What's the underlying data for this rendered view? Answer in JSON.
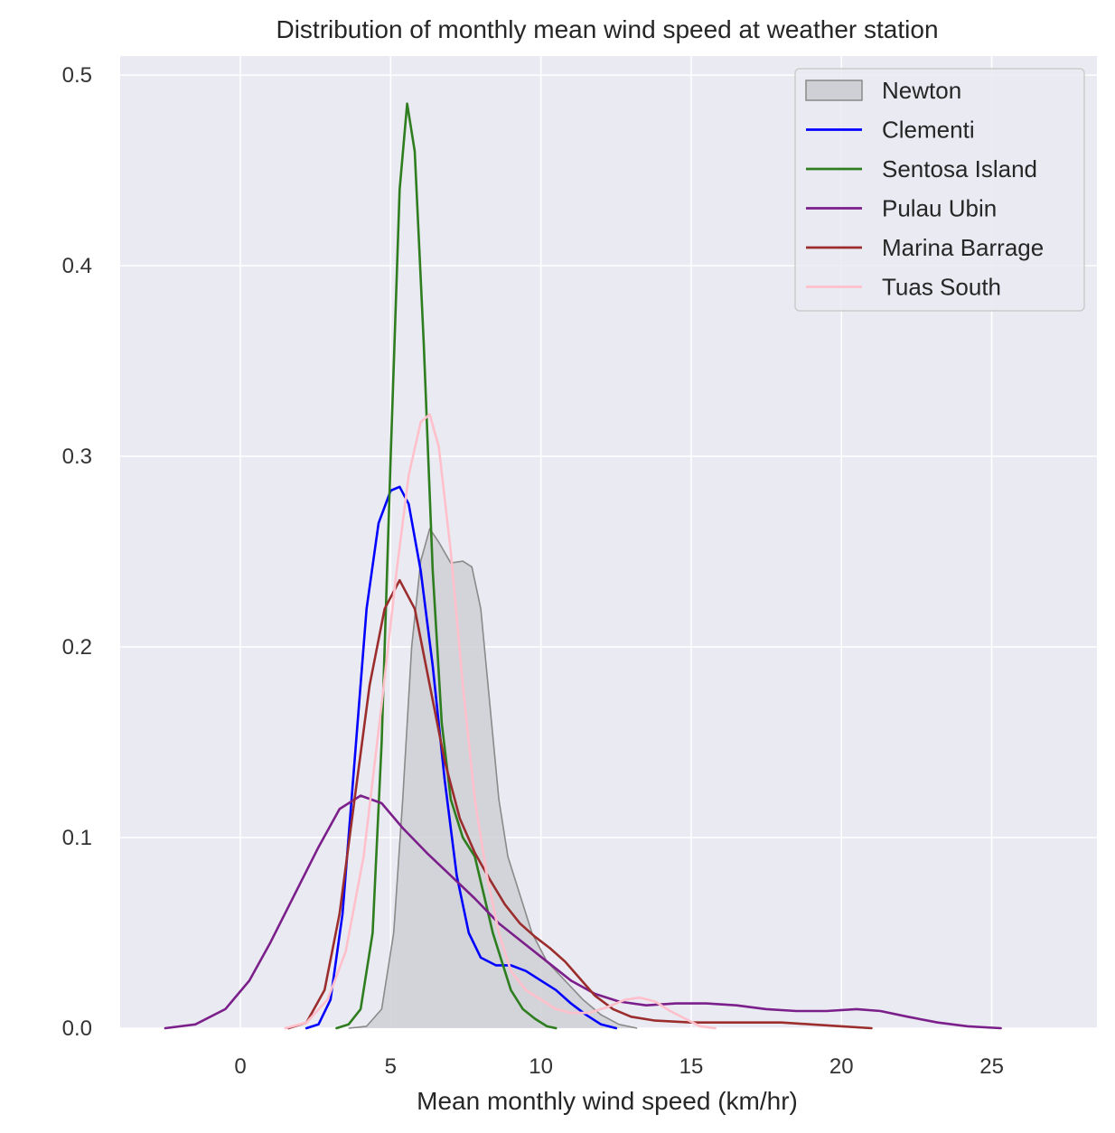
{
  "chart_data": {
    "type": "line",
    "title": "Distribution of monthly mean wind speed at weather station",
    "xlabel": "Mean monthly wind speed (km/hr)",
    "ylabel": "",
    "xlim": [
      -4,
      28.5
    ],
    "ylim": [
      0,
      0.51
    ],
    "xticks": [
      0,
      5,
      10,
      15,
      20,
      25
    ],
    "yticks": [
      0.0,
      0.1,
      0.2,
      0.3,
      0.4,
      0.5
    ],
    "xtick_labels": [
      "0",
      "5",
      "10",
      "15",
      "20",
      "25"
    ],
    "ytick_labels": [
      "0.0",
      "0.1",
      "0.2",
      "0.3",
      "0.4",
      "0.5"
    ],
    "grid": true,
    "legend_position": "top-right",
    "colors": {
      "background": "#eaeaf2",
      "grid": "#ffffff",
      "newton_fill": "#cfcfd6",
      "newton_line": "#8a8a8a"
    },
    "series": [
      {
        "name": "Newton",
        "style": "filled",
        "color": "#8a8a8a",
        "points": [
          [
            3.6,
            0
          ],
          [
            4.2,
            0.001
          ],
          [
            4.7,
            0.01
          ],
          [
            5.1,
            0.05
          ],
          [
            5.4,
            0.12
          ],
          [
            5.7,
            0.2
          ],
          [
            6.0,
            0.245
          ],
          [
            6.3,
            0.262
          ],
          [
            6.6,
            0.255
          ],
          [
            7.0,
            0.244
          ],
          [
            7.4,
            0.245
          ],
          [
            7.7,
            0.242
          ],
          [
            8.0,
            0.22
          ],
          [
            8.3,
            0.17
          ],
          [
            8.6,
            0.12
          ],
          [
            8.9,
            0.09
          ],
          [
            9.3,
            0.07
          ],
          [
            9.7,
            0.05
          ],
          [
            10.2,
            0.035
          ],
          [
            10.8,
            0.025
          ],
          [
            11.4,
            0.015
          ],
          [
            12.0,
            0.007
          ],
          [
            12.6,
            0.002
          ],
          [
            13.2,
            0
          ]
        ]
      },
      {
        "name": "Clementi",
        "style": "line",
        "color": "#0000ff",
        "points": [
          [
            2.2,
            0
          ],
          [
            2.6,
            0.002
          ],
          [
            3.0,
            0.015
          ],
          [
            3.4,
            0.06
          ],
          [
            3.8,
            0.14
          ],
          [
            4.2,
            0.22
          ],
          [
            4.6,
            0.265
          ],
          [
            5.0,
            0.282
          ],
          [
            5.3,
            0.284
          ],
          [
            5.6,
            0.275
          ],
          [
            6.0,
            0.24
          ],
          [
            6.4,
            0.19
          ],
          [
            6.8,
            0.13
          ],
          [
            7.2,
            0.08
          ],
          [
            7.6,
            0.05
          ],
          [
            8.0,
            0.037
          ],
          [
            8.5,
            0.033
          ],
          [
            9.0,
            0.033
          ],
          [
            9.5,
            0.03
          ],
          [
            10.0,
            0.025
          ],
          [
            10.5,
            0.02
          ],
          [
            11.0,
            0.013
          ],
          [
            11.5,
            0.007
          ],
          [
            12.0,
            0.002
          ],
          [
            12.5,
            0
          ]
        ]
      },
      {
        "name": "Sentosa Island",
        "style": "line",
        "color": "#2e7d1f",
        "points": [
          [
            3.2,
            0
          ],
          [
            3.6,
            0.002
          ],
          [
            4.0,
            0.01
          ],
          [
            4.4,
            0.05
          ],
          [
            4.7,
            0.15
          ],
          [
            5.0,
            0.3
          ],
          [
            5.3,
            0.44
          ],
          [
            5.55,
            0.485
          ],
          [
            5.8,
            0.46
          ],
          [
            6.1,
            0.36
          ],
          [
            6.4,
            0.24
          ],
          [
            6.7,
            0.16
          ],
          [
            7.0,
            0.12
          ],
          [
            7.4,
            0.1
          ],
          [
            7.8,
            0.09
          ],
          [
            8.1,
            0.07
          ],
          [
            8.4,
            0.05
          ],
          [
            8.7,
            0.035
          ],
          [
            9.0,
            0.02
          ],
          [
            9.4,
            0.01
          ],
          [
            9.8,
            0.005
          ],
          [
            10.2,
            0.001
          ],
          [
            10.5,
            0
          ]
        ]
      },
      {
        "name": "Pulau Ubin",
        "style": "line",
        "color": "#7b1f8a",
        "points": [
          [
            -2.5,
            0
          ],
          [
            -1.5,
            0.002
          ],
          [
            -0.5,
            0.01
          ],
          [
            0.3,
            0.025
          ],
          [
            1.0,
            0.045
          ],
          [
            1.8,
            0.07
          ],
          [
            2.6,
            0.095
          ],
          [
            3.3,
            0.115
          ],
          [
            4.0,
            0.122
          ],
          [
            4.7,
            0.118
          ],
          [
            5.4,
            0.105
          ],
          [
            6.2,
            0.092
          ],
          [
            7.0,
            0.08
          ],
          [
            7.8,
            0.068
          ],
          [
            8.6,
            0.055
          ],
          [
            9.4,
            0.045
          ],
          [
            10.2,
            0.035
          ],
          [
            11.0,
            0.025
          ],
          [
            11.8,
            0.018
          ],
          [
            12.6,
            0.014
          ],
          [
            13.5,
            0.012
          ],
          [
            14.5,
            0.013
          ],
          [
            15.5,
            0.013
          ],
          [
            16.5,
            0.012
          ],
          [
            17.5,
            0.01
          ],
          [
            18.5,
            0.009
          ],
          [
            19.5,
            0.009
          ],
          [
            20.5,
            0.01
          ],
          [
            21.3,
            0.009
          ],
          [
            22.2,
            0.006
          ],
          [
            23.2,
            0.003
          ],
          [
            24.2,
            0.001
          ],
          [
            25.3,
            0
          ]
        ]
      },
      {
        "name": "Marina Barrage",
        "style": "line",
        "color": "#9b2d2d",
        "points": [
          [
            1.6,
            0
          ],
          [
            2.2,
            0.003
          ],
          [
            2.8,
            0.02
          ],
          [
            3.3,
            0.06
          ],
          [
            3.8,
            0.12
          ],
          [
            4.3,
            0.18
          ],
          [
            4.8,
            0.22
          ],
          [
            5.3,
            0.235
          ],
          [
            5.8,
            0.22
          ],
          [
            6.3,
            0.18
          ],
          [
            6.8,
            0.14
          ],
          [
            7.3,
            0.11
          ],
          [
            7.8,
            0.092
          ],
          [
            8.3,
            0.078
          ],
          [
            8.8,
            0.065
          ],
          [
            9.3,
            0.055
          ],
          [
            9.8,
            0.048
          ],
          [
            10.3,
            0.042
          ],
          [
            10.8,
            0.035
          ],
          [
            11.3,
            0.026
          ],
          [
            11.8,
            0.017
          ],
          [
            12.4,
            0.01
          ],
          [
            13.0,
            0.006
          ],
          [
            13.8,
            0.004
          ],
          [
            15.0,
            0.003
          ],
          [
            16.5,
            0.003
          ],
          [
            18.0,
            0.003
          ],
          [
            19.0,
            0.002
          ],
          [
            20.0,
            0.001
          ],
          [
            21.0,
            0
          ]
        ]
      },
      {
        "name": "Tuas South",
        "style": "line",
        "color": "#ffc0cb",
        "points": [
          [
            1.5,
            0
          ],
          [
            2.2,
            0.003
          ],
          [
            2.9,
            0.015
          ],
          [
            3.5,
            0.04
          ],
          [
            4.1,
            0.09
          ],
          [
            4.7,
            0.17
          ],
          [
            5.2,
            0.24
          ],
          [
            5.6,
            0.29
          ],
          [
            6.0,
            0.318
          ],
          [
            6.3,
            0.322
          ],
          [
            6.6,
            0.305
          ],
          [
            7.0,
            0.25
          ],
          [
            7.4,
            0.18
          ],
          [
            7.8,
            0.12
          ],
          [
            8.2,
            0.08
          ],
          [
            8.6,
            0.05
          ],
          [
            9.0,
            0.03
          ],
          [
            9.5,
            0.02
          ],
          [
            10.0,
            0.015
          ],
          [
            10.5,
            0.01
          ],
          [
            11.0,
            0.008
          ],
          [
            11.6,
            0.008
          ],
          [
            12.2,
            0.011
          ],
          [
            12.8,
            0.015
          ],
          [
            13.3,
            0.016
          ],
          [
            13.8,
            0.014
          ],
          [
            14.3,
            0.009
          ],
          [
            14.8,
            0.005
          ],
          [
            15.3,
            0.001
          ],
          [
            15.8,
            0
          ]
        ]
      }
    ]
  }
}
